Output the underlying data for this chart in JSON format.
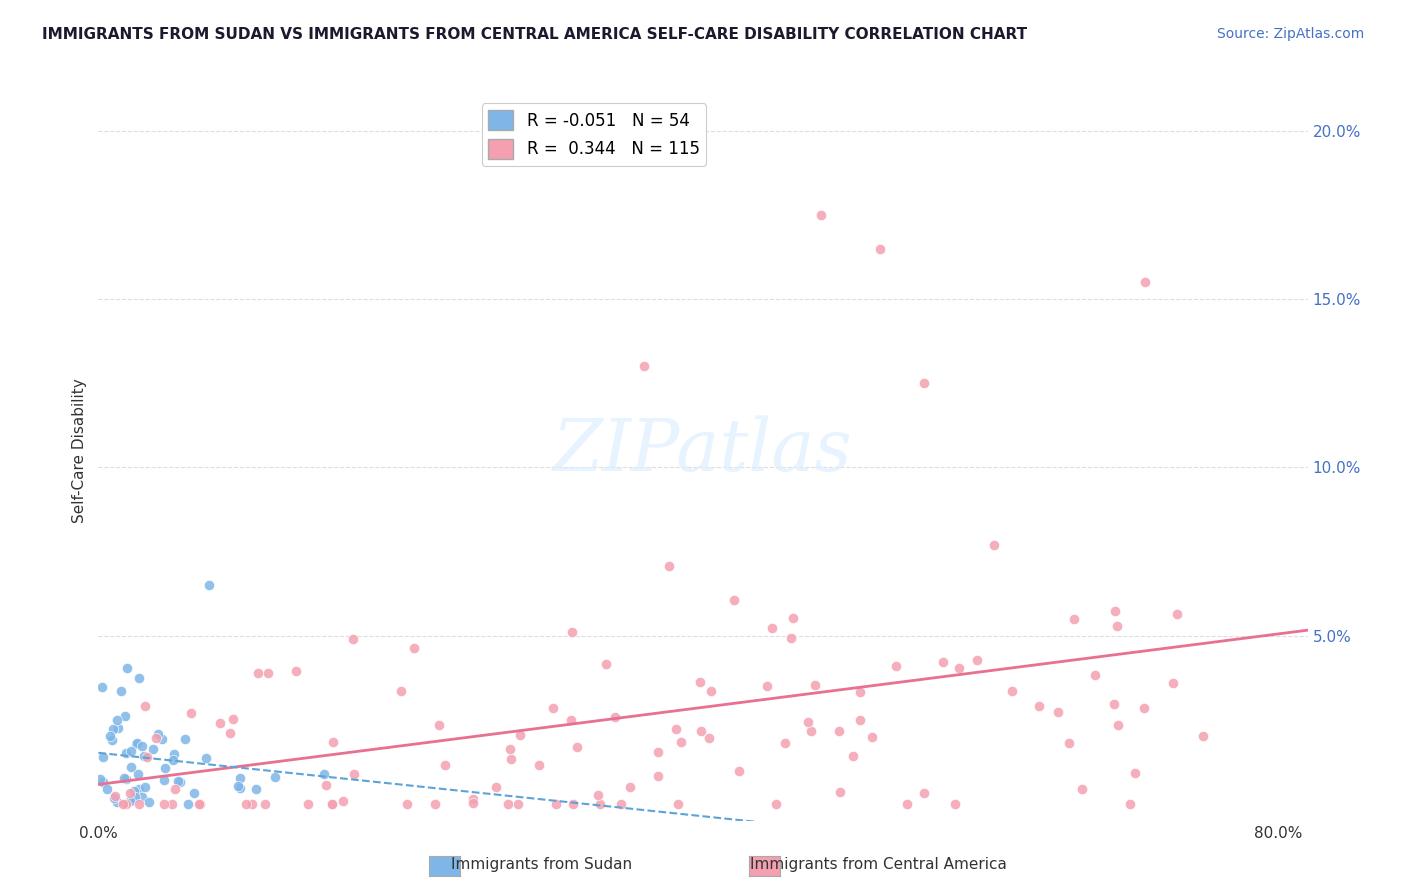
{
  "title": "IMMIGRANTS FROM SUDAN VS IMMIGRANTS FROM CENTRAL AMERICA SELF-CARE DISABILITY CORRELATION CHART",
  "source": "Source: ZipAtlas.com",
  "ylabel": "Self-Care Disability",
  "right_yticks": [
    "20.0%",
    "15.0%",
    "10.0%",
    "5.0%"
  ],
  "right_ytick_vals": [
    0.2,
    0.15,
    0.1,
    0.05
  ],
  "sudan_R": -0.051,
  "sudan_N": 54,
  "central_R": 0.344,
  "central_N": 115,
  "sudan_color": "#7EB6E8",
  "central_color": "#F4A0B0",
  "sudan_trend_color": "#5BA3D9",
  "central_trend_color": "#E87090",
  "background_color": "#FFFFFF",
  "grid_color": "#DDDDDD",
  "xlim": [
    0.0,
    0.82
  ],
  "ylim": [
    -0.005,
    0.215
  ],
  "title_color": "#1a1a2e",
  "source_color": "#4472C4"
}
